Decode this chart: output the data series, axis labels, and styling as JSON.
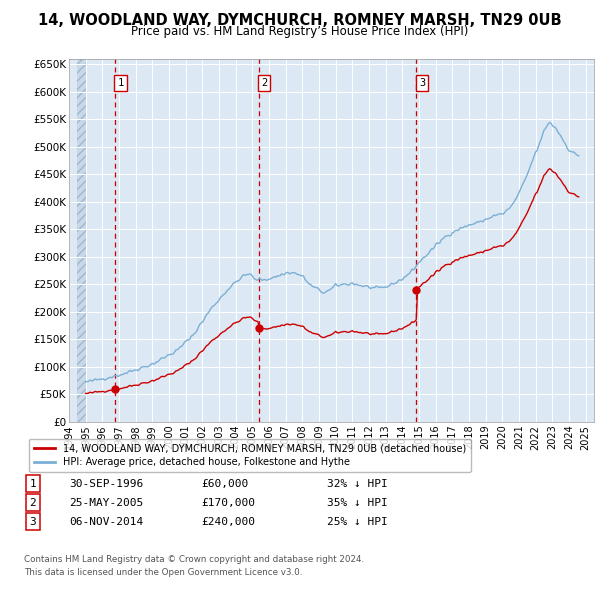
{
  "title": "14, WOODLAND WAY, DYMCHURCH, ROMNEY MARSH, TN29 0UB",
  "subtitle": "Price paid vs. HM Land Registry’s House Price Index (HPI)",
  "legend_line1": "14, WOODLAND WAY, DYMCHURCH, ROMNEY MARSH, TN29 0UB (detached house)",
  "legend_line2": "HPI: Average price, detached house, Folkestone and Hythe",
  "footer_line1": "Contains HM Land Registry data © Crown copyright and database right 2024.",
  "footer_line2": "This data is licensed under the Open Government Licence v3.0.",
  "hpi_color": "#7bafd4",
  "price_color": "#cc0000",
  "vline_color": "#cc0000",
  "bg_color": "#dce9f5",
  "hatch_color": "#b0c4d8",
  "grid_color": "#ffffff",
  "ylim": [
    0,
    660000
  ],
  "xlim_start": 1994.5,
  "xlim_end": 2025.5,
  "hpi_start_year": 1995.0,
  "trans_years": [
    1996.75,
    2005.38,
    2014.84
  ],
  "trans_prices": [
    60000,
    170000,
    240000
  ],
  "trans_labels": [
    "1",
    "2",
    "3"
  ],
  "trans_dates": [
    "30-SEP-1996",
    "25-MAY-2005",
    "06-NOV-2014"
  ],
  "trans_price_strs": [
    "£60,000",
    "£170,000",
    "£240,000"
  ],
  "trans_hpi_notes": [
    "32% ↓ HPI",
    "35% ↓ HPI",
    "25% ↓ HPI"
  ],
  "yticks": [
    0,
    50000,
    100000,
    150000,
    200000,
    250000,
    300000,
    350000,
    400000,
    450000,
    500000,
    550000,
    600000,
    650000
  ],
  "xtick_years": [
    1994,
    1995,
    1996,
    1997,
    1998,
    1999,
    2000,
    2001,
    2002,
    2003,
    2004,
    2005,
    2006,
    2007,
    2008,
    2009,
    2010,
    2011,
    2012,
    2013,
    2014,
    2015,
    2016,
    2017,
    2018,
    2019,
    2020,
    2021,
    2022,
    2023,
    2024,
    2025
  ]
}
